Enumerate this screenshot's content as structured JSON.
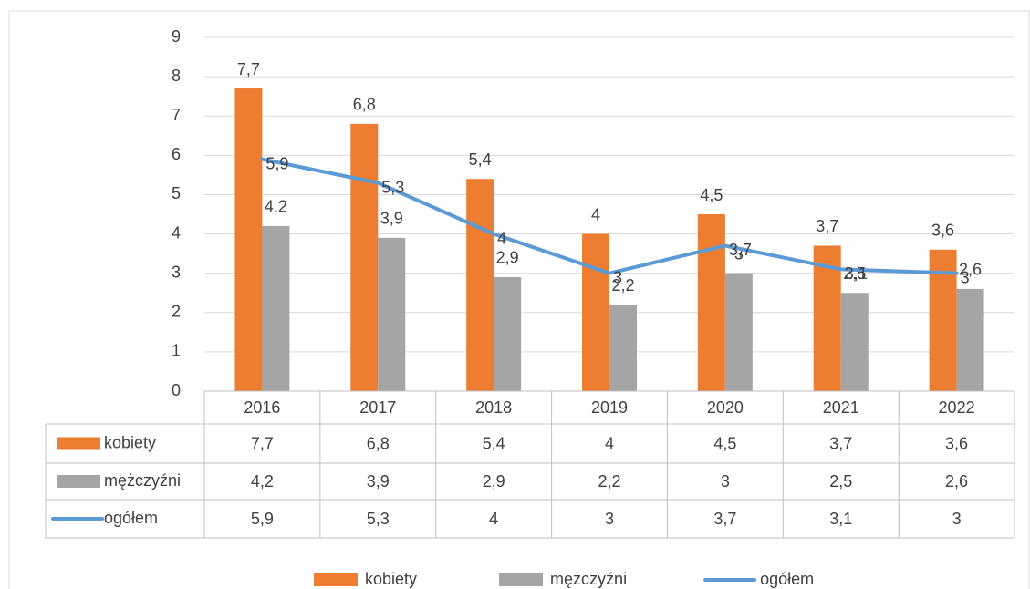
{
  "chart_data": {
    "type": "bar",
    "categories": [
      "2016",
      "2017",
      "2018",
      "2019",
      "2020",
      "2021",
      "2022"
    ],
    "series": [
      {
        "name": "kobiety",
        "color": "#ED7D31",
        "values": [
          7.7,
          6.8,
          5.4,
          4,
          4.5,
          3.7,
          3.6
        ],
        "value_labels": [
          "7,7",
          "6,8",
          "5,4",
          "4",
          "4,5",
          "3,7",
          "3,6"
        ]
      },
      {
        "name": "mężczyźni",
        "color": "#A5A5A5",
        "values": [
          4.2,
          3.9,
          2.9,
          2.2,
          3,
          2.5,
          2.6
        ],
        "value_labels": [
          "4,2",
          "3,9",
          "2,9",
          "2,2",
          "3",
          "2,5",
          "2,6"
        ]
      },
      {
        "name": "ogółem",
        "type": "line",
        "color": "#5B9BD5",
        "values": [
          5.9,
          5.3,
          4,
          3,
          3.7,
          3.1,
          3
        ],
        "value_labels": [
          "5,9",
          "5,3",
          "4",
          "3",
          "3,7",
          "3,1",
          "3"
        ]
      }
    ],
    "ylim": [
      0,
      9
    ],
    "yticks": [
      0,
      1,
      2,
      3,
      4,
      5,
      6,
      7,
      8,
      9
    ],
    "grid": true,
    "legend": "bottom",
    "data_table": true
  }
}
